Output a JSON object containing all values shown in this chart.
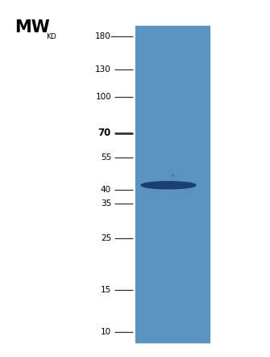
{
  "title": "MW",
  "mw_markers": [
    180,
    130,
    100,
    70,
    55,
    40,
    35,
    25,
    15,
    10
  ],
  "bold_markers": [
    70
  ],
  "kd_label_markers": [
    180
  ],
  "lane_color": "#5b92bf",
  "band_kd": 42,
  "band_color": "#1c3f72",
  "background_color": "#ffffff",
  "tick_line_color": "#333333",
  "font_color": "#000000",
  "ymin": 9,
  "ymax": 200
}
